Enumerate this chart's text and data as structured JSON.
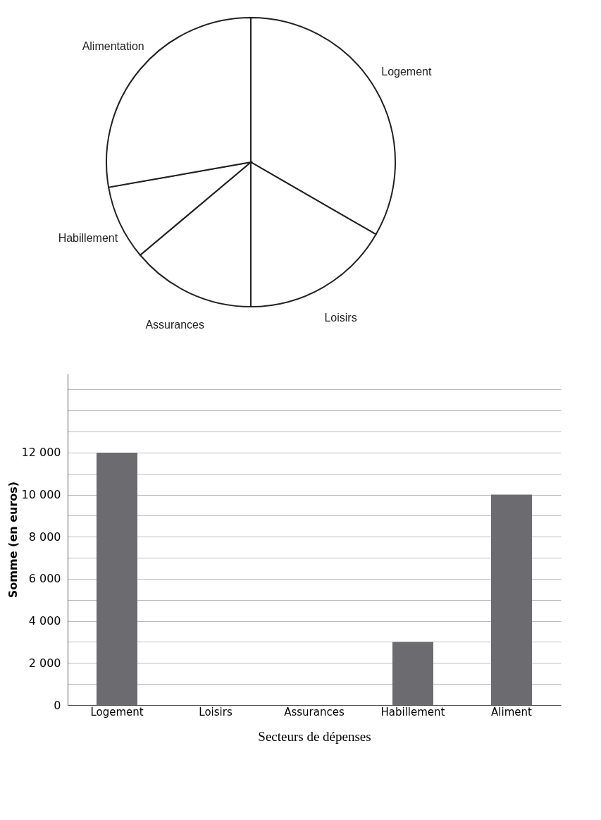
{
  "chart_data": [
    {
      "type": "pie",
      "categories": [
        "Logement",
        "Loisirs",
        "Assurances",
        "Habillement",
        "Alimentation"
      ],
      "values": [
        33.33,
        16.67,
        13.89,
        8.33,
        27.78
      ],
      "colors": [
        "#ffffff",
        "#ffffff",
        "#ffffff",
        "#ffffff",
        "#ffffff"
      ]
    },
    {
      "type": "bar",
      "categories": [
        "Logement",
        "Loisirs",
        "Assurances",
        "Habillement",
        "Aliment"
      ],
      "values": [
        12000,
        null,
        null,
        3000,
        10000
      ],
      "color": "#6b6b70",
      "xlabel": "Secteurs de dépenses",
      "ylabel": "Somme (en euros)",
      "ylim": [
        0,
        15750
      ],
      "yticks": [
        0,
        {
          "value": 1000,
          "label": null
        },
        {
          "value": 2000,
          "label": "2 000"
        },
        {
          "value": 3000,
          "label": null
        },
        {
          "value": 4000,
          "label": "4 000"
        },
        {
          "value": 5000,
          "label": null
        },
        {
          "value": 6000,
          "label": "6 000"
        },
        {
          "value": 7000,
          "label": null
        },
        {
          "value": 8000,
          "label": "8 000"
        },
        {
          "value": 9000,
          "label": null
        },
        {
          "value": 10000,
          "label": "10 000"
        },
        {
          "value": 11000,
          "label": null
        },
        {
          "value": 12000,
          "label": "12 000"
        },
        {
          "value": 13000,
          "label": null
        },
        {
          "value": 14000,
          "label": null
        },
        {
          "value": 15000,
          "label": null
        }
      ],
      "grid": true
    }
  ]
}
